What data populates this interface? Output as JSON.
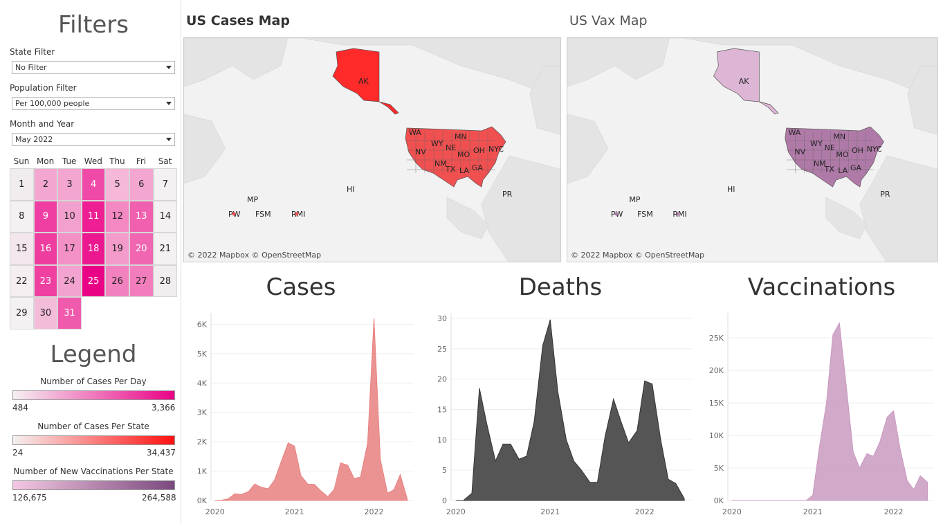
{
  "sidebar": {
    "filters_title": "Filters",
    "state_filter": {
      "label": "State Filter",
      "value": "No Filter"
    },
    "population_filter": {
      "label": "Population Filter",
      "value": "Per 100,000 people"
    },
    "month_year": {
      "label": "Month and Year",
      "value": "May 2022"
    },
    "weekdays": [
      "Sun",
      "Mon",
      "Tue",
      "Wed",
      "Thu",
      "Fri",
      "Sat"
    ],
    "calendar": [
      {
        "day": "1",
        "color": "#f1edef",
        "text": "#222"
      },
      {
        "day": "2",
        "color": "#f3a6d0",
        "text": "#222"
      },
      {
        "day": "3",
        "color": "#f3a6d0",
        "text": "#222"
      },
      {
        "day": "4",
        "color": "#f04aa8",
        "text": "#fff"
      },
      {
        "day": "5",
        "color": "#f5b8d9",
        "text": "#222"
      },
      {
        "day": "6",
        "color": "#f3a6d0",
        "text": "#222"
      },
      {
        "day": "7",
        "color": "#f4f1f2",
        "text": "#222"
      },
      {
        "day": "8",
        "color": "#f4f1f2",
        "text": "#222"
      },
      {
        "day": "9",
        "color": "#f03fa2",
        "text": "#fff"
      },
      {
        "day": "10",
        "color": "#f2a0cd",
        "text": "#222"
      },
      {
        "day": "11",
        "color": "#ee1f93",
        "text": "#fff"
      },
      {
        "day": "12",
        "color": "#f388c2",
        "text": "#222"
      },
      {
        "day": "13",
        "color": "#f060ae",
        "text": "#fff"
      },
      {
        "day": "14",
        "color": "#f4f1f2",
        "text": "#222"
      },
      {
        "day": "15",
        "color": "#f3e6ec",
        "text": "#222"
      },
      {
        "day": "16",
        "color": "#ee3d9f",
        "text": "#fff"
      },
      {
        "day": "17",
        "color": "#f390c6",
        "text": "#222"
      },
      {
        "day": "18",
        "color": "#ec188f",
        "text": "#fff"
      },
      {
        "day": "19",
        "color": "#f39ccb",
        "text": "#222"
      },
      {
        "day": "20",
        "color": "#f066b1",
        "text": "#fff"
      },
      {
        "day": "21",
        "color": "#f4f1f2",
        "text": "#222"
      },
      {
        "day": "22",
        "color": "#f4eef1",
        "text": "#222"
      },
      {
        "day": "23",
        "color": "#ef3fa1",
        "text": "#fff"
      },
      {
        "day": "24",
        "color": "#f3a3cf",
        "text": "#222"
      },
      {
        "day": "25",
        "color": "#ea0286",
        "text": "#fff"
      },
      {
        "day": "26",
        "color": "#f282bf",
        "text": "#222"
      },
      {
        "day": "27",
        "color": "#f27dbd",
        "text": "#222"
      },
      {
        "day": "28",
        "color": "#f1eeef",
        "text": "#222"
      },
      {
        "day": "29",
        "color": "#f4f1f2",
        "text": "#222"
      },
      {
        "day": "30",
        "color": "#f3bcd9",
        "text": "#222"
      },
      {
        "day": "31",
        "color": "#f05aac",
        "text": "#fff"
      }
    ],
    "legend_title": "Legend",
    "legends": [
      {
        "caption": "Number of Cases Per Day",
        "min": "484",
        "max": "3,366",
        "from": "#f5f0f3",
        "to": "#ea0286"
      },
      {
        "caption": "Number of Cases Per State",
        "min": "24",
        "max": "34,437",
        "from": "#f5f0f0",
        "to": "#ff1010"
      },
      {
        "caption": "Number of New Vaccinations Per State",
        "min": "126,675",
        "max": "264,588",
        "from": "#f3c8e2",
        "to": "#7a4a7e"
      }
    ]
  },
  "maps": [
    {
      "title": "US Cases Map",
      "attribution": "© 2022 Mapbox © OpenStreetMap",
      "state_color": "#f05050",
      "alaska_color": "#ff2a2a",
      "labels": [
        "AK",
        "WA",
        "MN",
        "WY",
        "NE",
        "NV",
        "OH",
        "NYC",
        "MO",
        "NM",
        "TX",
        "LA",
        "GA",
        "HI",
        "PR",
        "MP",
        "PW",
        "FSM",
        "RMI"
      ]
    },
    {
      "title": "US Vax Map",
      "attribution": "© 2022 Mapbox © OpenStreetMap",
      "state_color": "#b07aa8",
      "alaska_color": "#ddb6d6",
      "labels": [
        "AK",
        "WA",
        "MN",
        "WY",
        "NE",
        "NV",
        "OH",
        "NYC",
        "MO",
        "NM",
        "TX",
        "LA",
        "GA",
        "HI",
        "PR",
        "MP",
        "PW",
        "FSM",
        "RMI"
      ]
    }
  ],
  "chart_data": [
    {
      "type": "area",
      "title": "Cases",
      "color": "#e88080",
      "x": [
        2020.0,
        2020.08,
        2020.17,
        2020.25,
        2020.33,
        2020.42,
        2020.5,
        2020.58,
        2020.67,
        2020.75,
        2020.83,
        2020.92,
        2021.0,
        2021.08,
        2021.17,
        2021.25,
        2021.33,
        2021.42,
        2021.5,
        2021.58,
        2021.67,
        2021.75,
        2021.83,
        2021.92,
        2022.0,
        2022.08,
        2022.17,
        2022.25,
        2022.33,
        2022.42
      ],
      "y": [
        0,
        10,
        60,
        230,
        200,
        300,
        560,
        450,
        400,
        700,
        1300,
        1960,
        1850,
        850,
        550,
        550,
        330,
        130,
        380,
        1280,
        1200,
        750,
        800,
        1950,
        6200,
        1400,
        250,
        360,
        880,
        40
      ],
      "xticks": [
        "2020",
        "2021",
        "2022"
      ],
      "yticks": [
        "0K",
        "1K",
        "2K",
        "3K",
        "4K",
        "5K",
        "6K"
      ],
      "ylim": [
        0,
        6200
      ]
    },
    {
      "type": "area",
      "title": "Deaths",
      "color": "#555555",
      "x": [
        2020.0,
        2020.08,
        2020.17,
        2020.25,
        2020.33,
        2020.42,
        2020.5,
        2020.58,
        2020.67,
        2020.75,
        2020.83,
        2020.92,
        2021.0,
        2021.08,
        2021.17,
        2021.25,
        2021.33,
        2021.42,
        2021.5,
        2021.58,
        2021.67,
        2021.75,
        2021.83,
        2021.92,
        2022.0,
        2022.08,
        2022.17,
        2022.25,
        2022.33,
        2022.42
      ],
      "y": [
        0,
        0,
        1.2,
        18.5,
        12.5,
        6.5,
        9.3,
        9.3,
        6.8,
        7.3,
        13,
        25.5,
        29.8,
        18,
        10,
        6.5,
        5,
        3,
        3,
        10.5,
        16.7,
        13,
        9.5,
        11.5,
        19.7,
        19.2,
        10,
        3.5,
        2.8,
        0.3
      ],
      "xticks": [
        "2020",
        "2021",
        "2022"
      ],
      "yticks": [
        "0",
        "5",
        "10",
        "15",
        "20",
        "25",
        "30"
      ],
      "ylim": [
        0,
        30
      ]
    },
    {
      "type": "area",
      "title": "Vaccinations",
      "color": "#c99ac0",
      "x": [
        2020.0,
        2020.08,
        2020.17,
        2020.25,
        2020.33,
        2020.42,
        2020.5,
        2020.58,
        2020.67,
        2020.75,
        2020.83,
        2020.92,
        2021.0,
        2021.08,
        2021.17,
        2021.25,
        2021.33,
        2021.42,
        2021.5,
        2021.58,
        2021.67,
        2021.75,
        2021.83,
        2021.92,
        2022.0,
        2022.08,
        2022.17,
        2022.25,
        2022.33,
        2022.42
      ],
      "y": [
        0,
        0,
        0,
        0,
        0,
        0,
        0,
        0,
        0,
        0,
        0,
        0,
        800,
        8000,
        15000,
        25500,
        27300,
        17000,
        7500,
        5000,
        7200,
        6800,
        9000,
        12800,
        13800,
        8000,
        3000,
        1700,
        3800,
        2800
      ],
      "xticks": [
        "2020",
        "2021",
        "2022"
      ],
      "yticks": [
        "0K",
        "5K",
        "10K",
        "15K",
        "20K",
        "25K"
      ],
      "ylim": [
        0,
        28000
      ]
    }
  ]
}
